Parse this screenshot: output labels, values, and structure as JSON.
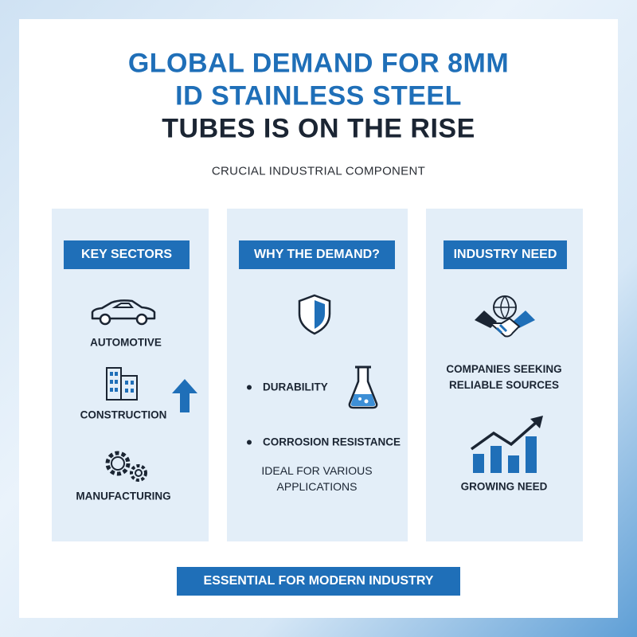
{
  "header": {
    "title_lines": [
      "GLOBAL DEMAND FOR 8MM",
      "ID STAINLESS STEEL",
      "TUBES IS ON THE RISE"
    ],
    "subtitle": "CRUCIAL INDUSTRIAL COMPONENT"
  },
  "columns": [
    {
      "heading": "KEY SECTORS",
      "items": [
        "AUTOMOTIVE",
        "CONSTRUCTION",
        "MANUFACTURING"
      ]
    },
    {
      "heading": "WHY THE DEMAND?",
      "items": [
        "DURABILITY",
        "CORROSION RESISTANCE"
      ],
      "note": "IDEAL FOR VARIOUS APPLICATIONS"
    },
    {
      "heading": "INDUSTRY NEED",
      "items": [
        "COMPANIES SEEKING RELIABLE SOURCES",
        "GROWING NEED"
      ]
    }
  ],
  "footer": "ESSENTIAL FOR MODERN INDUSTRY"
}
